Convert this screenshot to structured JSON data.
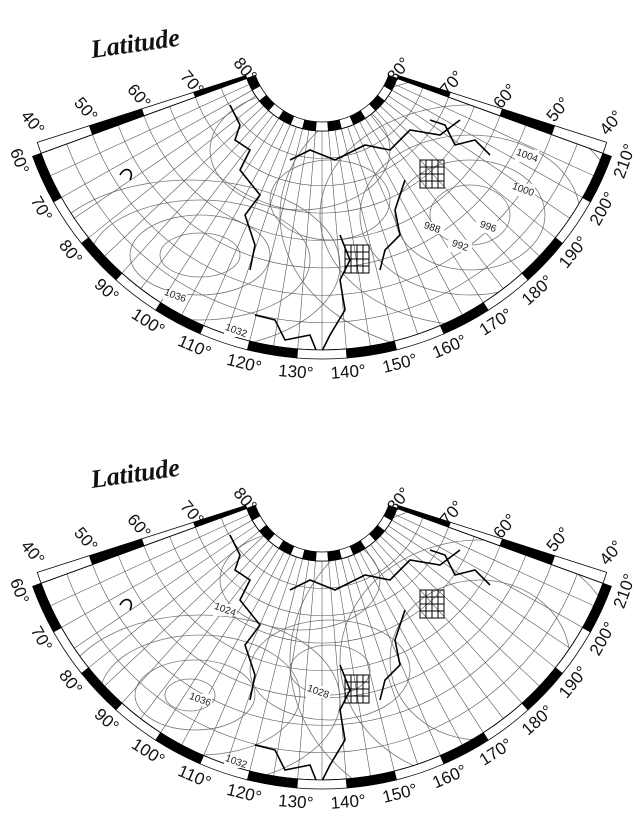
{
  "maps": [
    {
      "title": "Latitude",
      "lat_left": [
        "40°",
        "50°",
        "60°",
        "70°",
        "80°"
      ],
      "lat_right": [
        "80°",
        "70°",
        "60°",
        "50°",
        "40°"
      ],
      "lon_labels": [
        "60°",
        "70°",
        "80°",
        "90°",
        "100°",
        "110°",
        "120°",
        "130°",
        "140°",
        "150°",
        "160°",
        "170°",
        "180°",
        "190°",
        "200°",
        "210°"
      ],
      "contour_labels": [
        "1036",
        "1032",
        "988",
        "992",
        "996",
        "1000",
        "1004"
      ]
    },
    {
      "title": "Latitude",
      "lat_left": [
        "40°",
        "50°",
        "60°",
        "70°",
        "80°"
      ],
      "lat_right": [
        "80°",
        "70°",
        "60°",
        "50°",
        "40°"
      ],
      "lon_labels": [
        "60°",
        "70°",
        "80°",
        "90°",
        "100°",
        "110°",
        "120°",
        "130°",
        "140°",
        "150°",
        "160°",
        "170°",
        "180°",
        "190°",
        "200°",
        "210°"
      ],
      "contour_labels": [
        "1024",
        "1036",
        "1028",
        "1032"
      ]
    }
  ]
}
